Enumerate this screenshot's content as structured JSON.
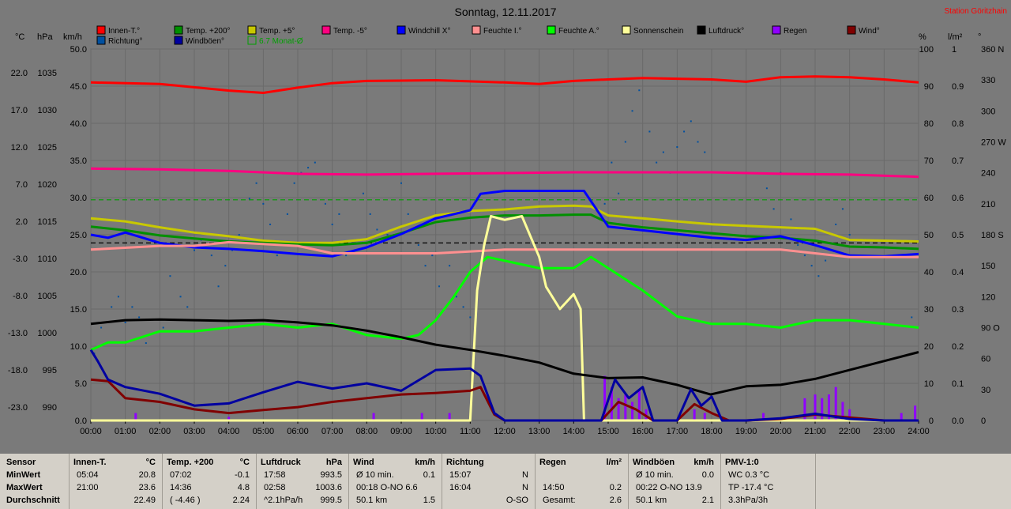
{
  "title": "Sonntag, 12.11.2017",
  "station": "Station Göritzhain",
  "colors": {
    "innen": "#ff0000",
    "temp200": "#009000",
    "temp5": "#c8c800",
    "tempm5": "#ff0080",
    "windchill": "#0000ff",
    "feuchteI": "#ff9090",
    "feuchteA": "#00ff00",
    "sonne": "#ffff9a",
    "luftdruck": "#000000",
    "regen": "#9000ff",
    "wind": "#800000",
    "richtung": "#0050a0",
    "windboeen": "#0000a0",
    "monat": "#00a000"
  },
  "legend": [
    {
      "label": "Innen-T.°",
      "color": "#ff0000"
    },
    {
      "label": "Temp. +200°",
      "color": "#009000"
    },
    {
      "label": "Temp. +5°",
      "color": "#c8c800"
    },
    {
      "label": "Temp. -5°",
      "color": "#ff0080"
    },
    {
      "label": "Windchill X°",
      "color": "#0000ff"
    },
    {
      "label": "Feuchte I.°",
      "color": "#ff9090"
    },
    {
      "label": "Feuchte A.°",
      "color": "#00ff00"
    },
    {
      "label": "Sonnenschein",
      "color": "#ffff9a"
    },
    {
      "label": "Luftdruck°",
      "color": "#000000"
    },
    {
      "label": "Regen",
      "color": "#9000ff"
    },
    {
      "label": "Wind°",
      "color": "#800000"
    },
    {
      "label": "Richtung°",
      "color": "#0050a0"
    },
    {
      "label": "Windböen°",
      "color": "#0000a0"
    },
    {
      "label": "6.7 Monat-Ø",
      "color": "#00a000"
    }
  ],
  "axis_units": {
    "c": "°C",
    "hpa": "hPa",
    "kmh": "km/h",
    "pct": "%",
    "lm2": "l/m²",
    "deg": "°"
  },
  "chart_data": {
    "type": "line",
    "x_ticks": [
      "00:00",
      "01:00",
      "02:00",
      "03:00",
      "04:00",
      "05:00",
      "06:00",
      "07:00",
      "08:00",
      "09:00",
      "10:00",
      "11:00",
      "12:00",
      "13:00",
      "14:00",
      "15:00",
      "16:00",
      "17:00",
      "18:00",
      "19:00",
      "20:00",
      "21:00",
      "22:00",
      "23:00",
      "24:00"
    ],
    "x_range": [
      0,
      24
    ],
    "axes": {
      "temp_c": {
        "ticks": [
          "22.0",
          "17.0",
          "12.0",
          "7.0",
          "2.0",
          "-3.0",
          "-8.0",
          "-13.0",
          "-18.0",
          "-23.0"
        ],
        "range": [
          -23,
          27
        ]
      },
      "pressure_hpa": {
        "ticks": [
          "1035",
          "1030",
          "1025",
          "1020",
          "1015",
          "1010",
          "1005",
          "1000",
          "995",
          "990"
        ],
        "range": [
          990,
          1040
        ]
      },
      "wind_kmh": {
        "ticks": [
          "50.0",
          "45.0",
          "40.0",
          "35.0",
          "30.0",
          "25.0",
          "20.0",
          "15.0",
          "10.0",
          "5.0",
          "0.0"
        ],
        "range": [
          0,
          50
        ]
      },
      "humidity_pct": {
        "ticks": [
          "100",
          "90",
          "80",
          "70",
          "60",
          "50",
          "40",
          "30",
          "20",
          "10",
          "0"
        ],
        "range": [
          0,
          100
        ]
      },
      "rain_lm2": {
        "ticks": [
          "1",
          "0.9",
          "0.8",
          "0.7",
          "0.6",
          "0.5",
          "0.4",
          "0.3",
          "0.2",
          "0.1",
          "0.0"
        ],
        "range": [
          0,
          1
        ]
      },
      "direction_deg": {
        "ticks": [
          "360 N",
          "330",
          "300",
          "270 W",
          "240",
          "210",
          "180 S",
          "150",
          "120",
          "90 O",
          "60",
          "30",
          "0"
        ],
        "range": [
          0,
          360
        ]
      }
    },
    "ref_lines": [
      {
        "name": "Monat-Ø",
        "axis": "temp_c",
        "y": 6.7,
        "color": "#00a000"
      },
      {
        "axis": "temp_c",
        "y": 0.9,
        "color": "#000000"
      }
    ],
    "series": [
      {
        "name": "Innen-T.°",
        "axis": "temp_c",
        "color": "#ff0000",
        "x": [
          0,
          2,
          4,
          5,
          6,
          7,
          8,
          10,
          12,
          13,
          14,
          15,
          16,
          17,
          18,
          19,
          20,
          21,
          22,
          23,
          24
        ],
        "y": [
          22.5,
          22.3,
          21.4,
          21.1,
          21.8,
          22.4,
          22.7,
          22.8,
          22.5,
          22.3,
          22.7,
          22.9,
          23.1,
          23.0,
          22.9,
          22.6,
          23.2,
          23.3,
          23.2,
          22.9,
          22.5
        ]
      },
      {
        "name": "Temp. -5°",
        "axis": "temp_c",
        "color": "#ff0080",
        "x": [
          0,
          2,
          4,
          6,
          8,
          10,
          12,
          14,
          16,
          18,
          20,
          22,
          24
        ],
        "y": [
          10.9,
          10.8,
          10.6,
          10.2,
          10.1,
          10.2,
          10.3,
          10.4,
          10.4,
          10.4,
          10.2,
          10.1,
          9.8
        ]
      },
      {
        "name": "Temp. +5°",
        "axis": "temp_c",
        "color": "#c8c800",
        "x": [
          0,
          1,
          2,
          3,
          4,
          5,
          6,
          7,
          8,
          9,
          10,
          11,
          12,
          13,
          14,
          14.5,
          15,
          16,
          17,
          18,
          19,
          20,
          21,
          22,
          23,
          24
        ],
        "y": [
          4.2,
          3.8,
          3.0,
          2.3,
          1.8,
          1.2,
          0.9,
          0.9,
          1.4,
          3.1,
          4.6,
          5.2,
          5.4,
          5.8,
          5.9,
          5.8,
          4.6,
          4.2,
          3.8,
          3.4,
          3.2,
          3.0,
          2.8,
          1.3,
          1.2,
          1.1
        ]
      },
      {
        "name": "Temp. +200°",
        "axis": "temp_c",
        "color": "#009000",
        "x": [
          0,
          1,
          2,
          3,
          4,
          5,
          6,
          7,
          8,
          9,
          10,
          11,
          12,
          13,
          14,
          14.5,
          15,
          16,
          17,
          18,
          19,
          20,
          21,
          22,
          23,
          24
        ],
        "y": [
          3.1,
          2.6,
          1.9,
          1.5,
          1.1,
          0.9,
          0.7,
          0.6,
          0.9,
          2.2,
          3.7,
          4.3,
          4.6,
          4.6,
          4.7,
          4.7,
          3.6,
          3.0,
          2.6,
          2.2,
          1.8,
          1.6,
          1.2,
          0.4,
          0.3,
          0.1
        ]
      },
      {
        "name": "Windchill X°",
        "axis": "temp_c",
        "color": "#0000ff",
        "x": [
          0,
          0.5,
          1,
          2,
          3,
          4,
          5,
          6,
          7,
          8,
          9,
          10,
          11,
          11.3,
          12,
          13,
          14,
          14.3,
          15,
          16,
          17,
          18,
          19,
          20,
          21,
          22,
          23,
          24
        ],
        "y": [
          2.0,
          1.6,
          2.3,
          0.9,
          0.3,
          0.1,
          -0.2,
          -0.6,
          -0.9,
          0.3,
          2.1,
          4.2,
          5.3,
          7.5,
          7.9,
          7.9,
          7.9,
          7.9,
          3.1,
          2.6,
          2.1,
          1.6,
          1.3,
          1.8,
          0.6,
          -0.8,
          -0.9,
          -0.6
        ]
      },
      {
        "name": "Feuchte I.°",
        "axis": "humidity_pct",
        "color": "#ff9090",
        "x": [
          0,
          2,
          3,
          4,
          6,
          7,
          8,
          10,
          12,
          14,
          16,
          18,
          20,
          21,
          22,
          24
        ],
        "y": [
          46,
          47,
          47,
          48,
          47,
          45,
          45,
          45,
          46,
          46,
          46,
          46,
          46,
          45,
          44,
          44
        ]
      },
      {
        "name": "Feuchte A.°",
        "axis": "humidity_pct",
        "color": "#00ff00",
        "x": [
          0,
          0.5,
          1,
          2,
          3,
          4,
          5,
          6,
          7,
          8,
          9,
          9.5,
          10,
          10.5,
          11,
          11.5,
          12,
          13,
          14,
          14.5,
          15,
          16,
          17,
          18,
          19,
          20,
          21,
          22,
          23,
          24
        ],
        "y": [
          19,
          21,
          21,
          24,
          24,
          25,
          26,
          25,
          26,
          23,
          22,
          23,
          27,
          33,
          40,
          44,
          43,
          41,
          41,
          44,
          41,
          35,
          28,
          26,
          26,
          25,
          27,
          27,
          26,
          25
        ]
      },
      {
        "name": "Sonnenschein",
        "axis": "humidity_pct",
        "color": "#ffff9a",
        "x": [
          0,
          11,
          11.2,
          11.4,
          11.6,
          12,
          12.5,
          13,
          13.2,
          13.6,
          14,
          14.2,
          14.3,
          24
        ],
        "y": [
          0,
          0,
          35,
          47,
          55,
          54,
          55,
          44,
          36,
          30,
          34,
          30,
          0,
          0
        ]
      },
      {
        "name": "Luftdruck°",
        "axis": "pressure_hpa",
        "color": "#000000",
        "x": [
          0,
          1,
          2,
          3,
          4,
          5,
          6,
          7,
          8,
          9,
          10,
          11,
          12,
          13,
          14,
          15,
          16,
          17,
          17.97,
          19,
          20,
          21,
          22,
          23,
          24
        ],
        "y": [
          1003,
          1003.5,
          1003.6,
          1003.5,
          1003.4,
          1003.5,
          1003.2,
          1002.8,
          1002.1,
          1001.2,
          1000.2,
          999.5,
          998.7,
          997.8,
          996.3,
          995.7,
          995.8,
          994.8,
          993.5,
          994.6,
          994.8,
          995.6,
          996.8,
          998,
          999.2
        ]
      },
      {
        "name": "Wind°",
        "axis": "wind_kmh",
        "color": "#800000",
        "x": [
          0,
          0.5,
          1,
          2,
          3,
          4,
          5,
          6,
          7,
          8,
          9,
          10,
          11,
          11.3,
          11.7,
          12,
          14.8,
          15.3,
          15.8,
          16.3,
          17,
          17.5,
          18,
          18.5,
          19,
          20,
          21,
          22,
          23,
          24
        ],
        "y": [
          5.5,
          5.3,
          3.0,
          2.5,
          1.5,
          1.0,
          1.4,
          1.8,
          2.5,
          3.0,
          3.5,
          3.7,
          4.0,
          4.5,
          0.8,
          0,
          0,
          2.5,
          1.5,
          0,
          0,
          2.2,
          1.0,
          0,
          0,
          0.2,
          0.8,
          0.4,
          0,
          0
        ]
      },
      {
        "name": "Windböen°",
        "axis": "wind_kmh",
        "color": "#0000a0",
        "x": [
          0,
          0.2,
          0.5,
          1,
          2,
          3,
          4,
          5,
          6,
          7,
          8,
          9,
          10,
          11,
          11.3,
          11.7,
          12,
          14.8,
          15.2,
          15.6,
          16,
          16.3,
          17,
          17.4,
          17.7,
          18,
          18.3,
          19,
          20,
          21,
          22,
          23,
          24
        ],
        "y": [
          9.5,
          8.0,
          5.5,
          4.5,
          3.6,
          2.0,
          2.3,
          3.8,
          5.2,
          4.3,
          5.0,
          4.0,
          6.8,
          7.0,
          6.0,
          1.0,
          0,
          0,
          5.5,
          3.0,
          4.5,
          0,
          0,
          4.2,
          2.0,
          3.2,
          0,
          0,
          0.3,
          0.9,
          0.2,
          0,
          0
        ]
      },
      {
        "name": "Regen",
        "axis": "rain_lm2",
        "type": "bar",
        "color": "#9000ff",
        "x": [
          1.3,
          4.0,
          8.2,
          9.6,
          10.4,
          14.9,
          15.1,
          15.3,
          15.5,
          15.7,
          15.9,
          16.1,
          17.5,
          17.8,
          19.5,
          20.7,
          21.0,
          21.2,
          21.4,
          21.6,
          21.8,
          22.0,
          23.5,
          23.9
        ],
        "y": [
          0.02,
          0.01,
          0.02,
          0.02,
          0.02,
          0.12,
          0.09,
          0.06,
          0.07,
          0.05,
          0.08,
          0.03,
          0.03,
          0.02,
          0.02,
          0.06,
          0.07,
          0.06,
          0.07,
          0.09,
          0.05,
          0.03,
          0.02,
          0.04
        ]
      }
    ],
    "scatter": {
      "name": "Richtung°",
      "axis": "direction_deg",
      "color": "#0050a0",
      "x": [
        0.1,
        0.3,
        0.6,
        0.8,
        1.0,
        1.2,
        1.4,
        1.6,
        1.9,
        2.1,
        2.3,
        2.6,
        2.8,
        3.0,
        3.2,
        3.5,
        3.7,
        3.9,
        4.1,
        4.3,
        4.6,
        4.8,
        5.0,
        5.2,
        5.4,
        5.7,
        5.9,
        6.1,
        6.3,
        6.5,
        6.8,
        7.0,
        7.2,
        7.4,
        7.7,
        7.9,
        8.1,
        8.3,
        8.6,
        8.8,
        9.0,
        9.2,
        9.5,
        9.7,
        9.9,
        10.1,
        10.4,
        10.6,
        10.8,
        11.0,
        14.9,
        15.1,
        15.3,
        15.5,
        15.7,
        15.9,
        16.2,
        16.4,
        16.6,
        16.8,
        17.0,
        17.2,
        17.4,
        17.6,
        17.8,
        19.6,
        19.8,
        20.0,
        20.3,
        20.5,
        20.7,
        20.9,
        21.1,
        21.3,
        21.6,
        21.8,
        22.0,
        23.8
      ],
      "y": [
        65,
        90,
        110,
        120,
        95,
        110,
        100,
        75,
        85,
        90,
        140,
        120,
        110,
        165,
        175,
        160,
        130,
        150,
        165,
        180,
        215,
        230,
        210,
        190,
        160,
        200,
        230,
        240,
        245,
        250,
        210,
        190,
        200,
        160,
        175,
        220,
        200,
        185,
        180,
        180,
        230,
        200,
        170,
        150,
        160,
        130,
        150,
        120,
        110,
        100,
        210,
        250,
        220,
        270,
        300,
        320,
        280,
        250,
        260,
        240,
        265,
        280,
        290,
        270,
        260,
        225,
        205,
        240,
        195,
        170,
        160,
        150,
        140,
        155,
        190,
        205,
        180,
        100
      ]
    }
  },
  "stats": {
    "rows": [
      "MinWert",
      "MaxWert",
      "Durchschnitt"
    ],
    "row_header": "Sensor",
    "cols": [
      {
        "title": "Innen-T.",
        "unit": "°C",
        "cells": [
          [
            "05:04",
            "20.8"
          ],
          [
            "21:00",
            "23.6"
          ],
          [
            "",
            "22.49"
          ]
        ]
      },
      {
        "title": "Temp. +200",
        "unit": "°C",
        "cells": [
          [
            "07:02",
            "-0.1"
          ],
          [
            "14:36",
            "4.8"
          ],
          [
            "( -4.46 )",
            "2.24"
          ]
        ]
      },
      {
        "title": "Luftdruck",
        "unit": "hPa",
        "cells": [
          [
            "17:58",
            "993.5"
          ],
          [
            "02:58",
            "1003.6"
          ],
          [
            "^2.1hPa/h",
            "999.5"
          ]
        ]
      },
      {
        "title": "Wind",
        "unit": "km/h",
        "cells": [
          [
            "Ø 10 min.",
            "0.1"
          ],
          [
            "00:18     O-NO 6.6",
            ""
          ],
          [
            "50.1 km",
            "1.5"
          ]
        ]
      },
      {
        "title": "Richtung",
        "unit": "",
        "cells": [
          [
            "15:07",
            "N"
          ],
          [
            "16:04",
            "N"
          ],
          [
            "",
            "O-SO"
          ]
        ]
      },
      {
        "title": "Regen",
        "unit": "l/m²",
        "cells": [
          [
            "",
            ""
          ],
          [
            "14:50",
            "0.2"
          ],
          [
            "Gesamt:",
            "2.6"
          ]
        ]
      },
      {
        "title": "Windböen",
        "unit": "km/h",
        "cells": [
          [
            "Ø 10 min.",
            "0.0"
          ],
          [
            "00:22     O-NO 13.9",
            ""
          ],
          [
            "50.1 km",
            "2.1"
          ]
        ]
      },
      {
        "title": "PMV-1:0",
        "unit": "",
        "cells": [
          [
            "WC 0.3 °C",
            ""
          ],
          [
            "TP -17.4 °C",
            ""
          ],
          [
            "3.3hPa/3h",
            ""
          ]
        ]
      }
    ]
  }
}
